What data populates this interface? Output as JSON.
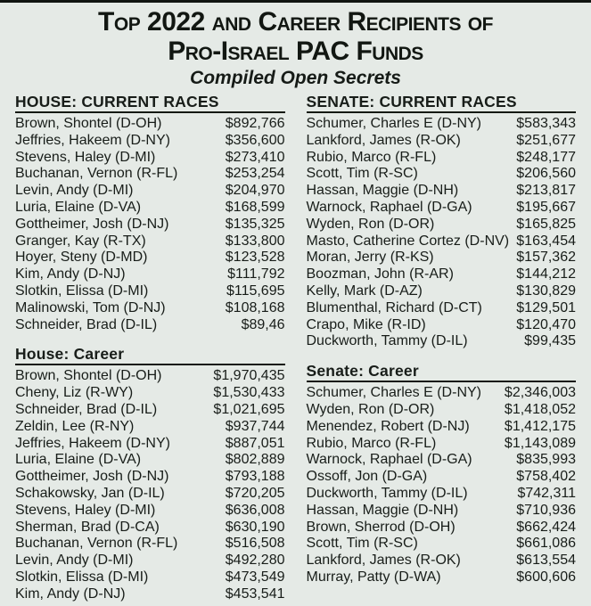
{
  "title_line1": "Top 2022 and Career Recipients of",
  "title_line2": "Pro-Israel PAC Funds",
  "subtitle": "Compiled Open Secrets",
  "colors": {
    "background": "#e5eae6",
    "text": "#181d19",
    "rule": "#14190f",
    "top_border": "#111511"
  },
  "sections": {
    "house_current": {
      "header": "HOUSE: CURRENT RACES",
      "rows": [
        {
          "name": "Brown, Shontel (D-OH)",
          "amount": "$892,766"
        },
        {
          "name": "Jeffries, Hakeem (D-NY)",
          "amount": "$356,600"
        },
        {
          "name": "Stevens, Haley (D-MI)",
          "amount": "$273,410"
        },
        {
          "name": "Buchanan, Vernon (R-FL)",
          "amount": "$253,254"
        },
        {
          "name": "Levin, Andy (D-MI)",
          "amount": "$204,970"
        },
        {
          "name": "Luria, Elaine (D-VA)",
          "amount": "$168,599"
        },
        {
          "name": "Gottheimer, Josh (D-NJ)",
          "amount": "$135,325"
        },
        {
          "name": "Granger, Kay (R-TX)",
          "amount": "$133,800"
        },
        {
          "name": "Hoyer, Steny (D-MD)",
          "amount": "$123,528"
        },
        {
          "name": "Kim, Andy (D-NJ)",
          "amount": "$111,792"
        },
        {
          "name": "Slotkin, Elissa (D-MI)",
          "amount": "$115,695"
        },
        {
          "name": "Malinowski, Tom (D-NJ)",
          "amount": "$108,168"
        },
        {
          "name": "Schneider, Brad (D-IL)",
          "amount": "$89,46"
        }
      ]
    },
    "senate_current": {
      "header": "SENATE: CURRENT RACES",
      "rows": [
        {
          "name": "Schumer, Charles E (D-NY)",
          "amount": "$583,343"
        },
        {
          "name": "Lankford, James (R-OK)",
          "amount": "$251,677"
        },
        {
          "name": "Rubio, Marco (R-FL)",
          "amount": "$248,177"
        },
        {
          "name": "Scott, Tim (R-SC)",
          "amount": "$206,560"
        },
        {
          "name": "Hassan, Maggie (D-NH)",
          "amount": "$213,817"
        },
        {
          "name": "Warnock, Raphael (D-GA)",
          "amount": "$195,667"
        },
        {
          "name": "Wyden, Ron (D-OR)",
          "amount": "$165,825"
        },
        {
          "name": "Masto, Catherine Cortez (D-NV)",
          "amount": "$163,454"
        },
        {
          "name": "Moran, Jerry (R-KS)",
          "amount": "$157,362"
        },
        {
          "name": "Boozman, John (R-AR)",
          "amount": "$144,212"
        },
        {
          "name": "Kelly, Mark (D-AZ)",
          "amount": "$130,829"
        },
        {
          "name": "Blumenthal, Richard (D-CT)",
          "amount": "$129,501"
        },
        {
          "name": "Crapo, Mike (R-ID)",
          "amount": "$120,470"
        },
        {
          "name": "Duckworth, Tammy (D-IL)",
          "amount": "$99,435"
        }
      ]
    },
    "house_career": {
      "header": "House: Career",
      "rows": [
        {
          "name": "Brown, Shontel (D-OH)",
          "amount": "$1,970,435"
        },
        {
          "name": "Cheny, Liz (R-WY)",
          "amount": "$1,530,433"
        },
        {
          "name": "Schneider, Brad (D-IL)",
          "amount": "$1,021,695"
        },
        {
          "name": "Zeldin, Lee (R-NY)",
          "amount": "$937,744"
        },
        {
          "name": "Jeffries, Hakeem (D-NY)",
          "amount": "$887,051"
        },
        {
          "name": "Luria, Elaine (D-VA)",
          "amount": "$802,889"
        },
        {
          "name": "Gottheimer, Josh (D-NJ)",
          "amount": "$793,188"
        },
        {
          "name": "Schakowsky, Jan (D-IL)",
          "amount": "$720,205"
        },
        {
          "name": "Stevens, Haley (D-MI)",
          "amount": "$636,008"
        },
        {
          "name": "Sherman, Brad (D-CA)",
          "amount": "$630,190"
        },
        {
          "name": "Buchanan, Vernon (R-FL)",
          "amount": "$516,508"
        },
        {
          "name": "Levin, Andy (D-MI)",
          "amount": "$492,280"
        },
        {
          "name": "Slotkin, Elissa (D-MI)",
          "amount": "$473,549"
        },
        {
          "name": "Kim, Andy (D-NJ)",
          "amount": "$453,541"
        }
      ]
    },
    "senate_career": {
      "header": "Senate: Career",
      "rows": [
        {
          "name": "Schumer, Charles E (D-NY)",
          "amount": "$2,346,003"
        },
        {
          "name": "Wyden, Ron (D-OR)",
          "amount": "$1,418,052"
        },
        {
          "name": "Menendez, Robert (D-NJ)",
          "amount": "$1,412,175"
        },
        {
          "name": "Rubio, Marco (R-FL)",
          "amount": "$1,143,089"
        },
        {
          "name": "Warnock, Raphael (D-GA)",
          "amount": "$835,993"
        },
        {
          "name": "Ossoff, Jon (D-GA)",
          "amount": "$758,402"
        },
        {
          "name": "Duckworth, Tammy (D-IL)",
          "amount": "$742,311"
        },
        {
          "name": "Hassan, Maggie (D-NH)",
          "amount": "$710,936"
        },
        {
          "name": "Brown, Sherrod (D-OH)",
          "amount": "$662,424"
        },
        {
          "name": "Scott, Tim (R-SC)",
          "amount": "$661,086"
        },
        {
          "name": "Lankford, James (R-OK)",
          "amount": "$613,554"
        },
        {
          "name": "Murray, Patty (D-WA)",
          "amount": "$600,606"
        }
      ]
    }
  }
}
